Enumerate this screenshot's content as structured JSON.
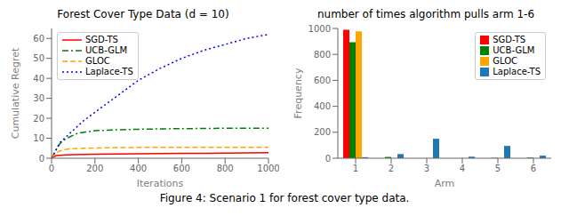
{
  "title": "Figure 4: Scenario 1 for forest cover type data.",
  "chart_data": [
    {
      "type": "line",
      "title": "Forest Cover Type Data (d = 10)",
      "xlabel": "Iterations",
      "ylabel": "Cumulative Regret",
      "xlim": [
        0,
        1000
      ],
      "xticks": [
        0,
        200,
        400,
        600,
        800,
        1000
      ],
      "ylim": [
        0,
        65
      ],
      "yticks": [
        0,
        10,
        20,
        30,
        40,
        50,
        60
      ],
      "grid": false,
      "legend": "upper left",
      "series": [
        {
          "name": "SGD-TS",
          "color": "#ff0000",
          "line_style": "solid",
          "x": [
            0,
            10,
            20,
            30,
            40,
            50,
            70,
            100,
            150,
            200,
            300,
            400,
            500,
            600,
            700,
            800,
            900,
            1000
          ],
          "values": [
            0,
            0.8,
            1.2,
            1.4,
            1.5,
            1.6,
            1.7,
            1.8,
            1.9,
            2.0,
            2.1,
            2.2,
            2.3,
            2.4,
            2.5,
            2.6,
            2.7,
            2.8
          ]
        },
        {
          "name": "UCB-GLM",
          "color": "#008000",
          "line_style": "dashdot",
          "x": [
            0,
            10,
            20,
            30,
            40,
            50,
            70,
            100,
            120,
            150,
            200,
            300,
            400,
            500,
            600,
            700,
            800,
            900,
            1000
          ],
          "values": [
            0,
            2,
            4,
            6,
            7.5,
            8.5,
            10,
            11.5,
            12.5,
            13,
            13.8,
            14.2,
            14.5,
            14.7,
            14.8,
            14.9,
            15.0,
            15.0,
            15.0
          ]
        },
        {
          "name": "GLOC",
          "color": "#ffa500",
          "line_style": "dashed",
          "x": [
            0,
            10,
            20,
            30,
            40,
            50,
            70,
            100,
            150,
            200,
            300,
            400,
            500,
            600,
            700,
            800,
            900,
            1000
          ],
          "values": [
            0,
            1.5,
            2.5,
            3.2,
            3.7,
            4.0,
            4.5,
            4.8,
            5.0,
            5.1,
            5.3,
            5.4,
            5.4,
            5.4,
            5.5,
            5.5,
            5.5,
            5.5
          ]
        },
        {
          "name": "Laplace-TS",
          "color": "#0000ff",
          "line_style": "dotted",
          "x": [
            0,
            10,
            20,
            30,
            40,
            50,
            70,
            100,
            150,
            200,
            300,
            400,
            500,
            600,
            700,
            800,
            900,
            1000
          ],
          "values": [
            0,
            2,
            4,
            6,
            8,
            9,
            11,
            14,
            19,
            23,
            31,
            39,
            45,
            50,
            54,
            57,
            60,
            62
          ]
        }
      ]
    },
    {
      "type": "bar",
      "title": "number of times algorithm pulls arm 1-6",
      "xlabel": "Arm",
      "ylabel": "Frequency",
      "categories": [
        "1",
        "2",
        "3",
        "4",
        "5",
        "6"
      ],
      "ylim": [
        0,
        1000
      ],
      "yticks": [
        0,
        200,
        400,
        600,
        800,
        1000
      ],
      "grid": false,
      "legend": "upper right",
      "series": [
        {
          "name": "SGD-TS",
          "color": "#ff0000",
          "values": [
            990,
            0,
            0,
            0,
            0,
            0
          ]
        },
        {
          "name": "UCB-GLM",
          "color": "#008000",
          "values": [
            893,
            10,
            0,
            0,
            3,
            5
          ]
        },
        {
          "name": "GLOC",
          "color": "#ffa500",
          "values": [
            978,
            0,
            0,
            0,
            0,
            0
          ]
        },
        {
          "name": "Laplace-TS",
          "color": "#1f77b4",
          "values": [
            8,
            32,
            150,
            12,
            95,
            20
          ]
        }
      ]
    }
  ]
}
